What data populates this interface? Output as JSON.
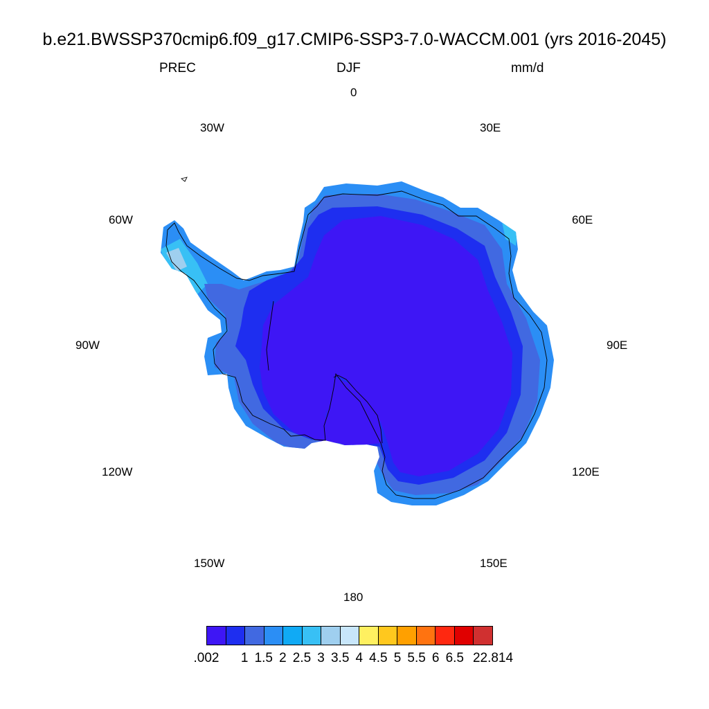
{
  "header": {
    "title": "b.e21.BWSSP370cmip6.f09_g17.CMIP6-SSP3-7.0-WACCM.001 (yrs 2016-2045)",
    "variable": "PREC",
    "season": "DJF",
    "units": "mm/d"
  },
  "longitude_labels": {
    "lon_0": "0",
    "lon_30e": "30E",
    "lon_60e": "60E",
    "lon_90e": "90E",
    "lon_120e": "120E",
    "lon_150e": "150E",
    "lon_180": "180",
    "lon_150w": "150W",
    "lon_120w": "120W",
    "lon_90w": "90W",
    "lon_60w": "60W",
    "lon_30w": "30W"
  },
  "colorbar": {
    "colors": [
      "#3e16f5",
      "#1e2ef0",
      "#4169e1",
      "#2b8ef5",
      "#10aaf5",
      "#38c0f5",
      "#9fcfef",
      "#c8e6fa",
      "#fff060",
      "#ffc81e",
      "#ffa000",
      "#ff7310",
      "#ff2810",
      "#e00000",
      "#d03030"
    ],
    "labels": [
      ".002",
      "1",
      "1.5",
      "2",
      "2.5",
      "3",
      "3.5",
      "4",
      "4.5",
      "5",
      "5.5",
      "6",
      "6.5",
      "22.814"
    ]
  },
  "map": {
    "field": "precipitation",
    "region": "Antarctica",
    "colors": {
      "interior": "#3e16f5",
      "coast_inner": "#1e2ef0",
      "coast_mid": "#4169e1",
      "coast_outer": "#2b8ef5",
      "peninsula_high": "#38c0f5",
      "peninsula_max": "#9fcfef",
      "coastline": "#000000"
    }
  }
}
